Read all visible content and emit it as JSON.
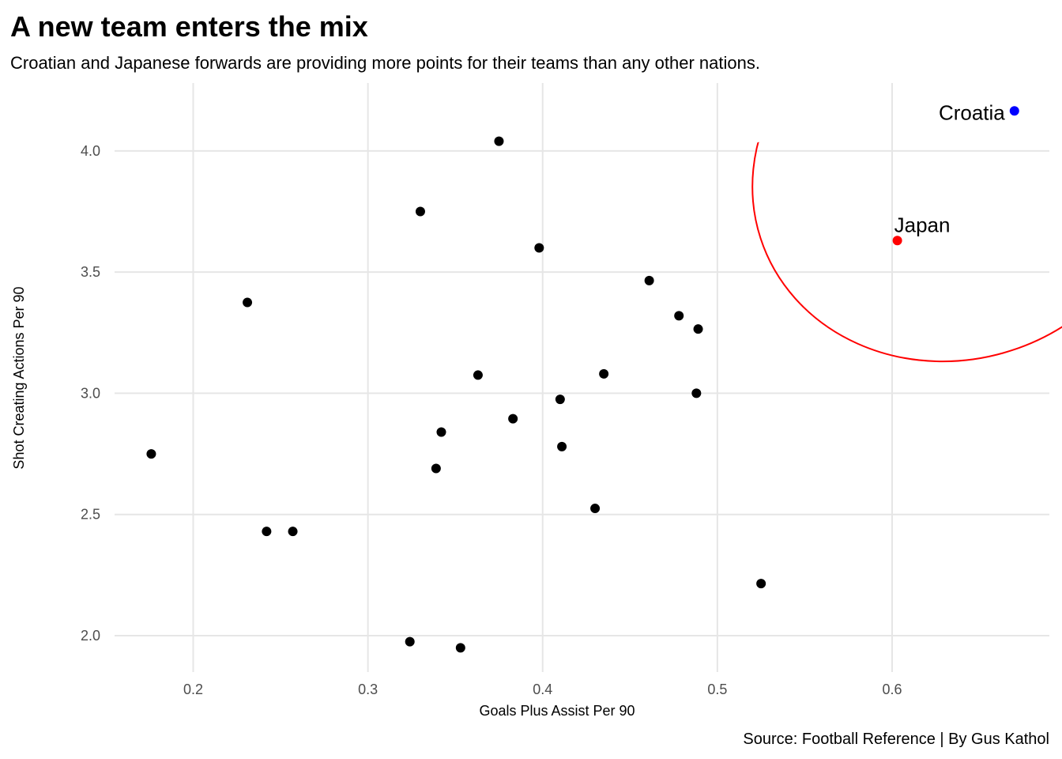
{
  "chart_data": {
    "type": "scatter",
    "title": "A new team enters the mix",
    "subtitle": "Croatian and Japanese forwards are providing more points for their teams than any other nations.",
    "xlabel": "Goals Plus Assist Per 90",
    "ylabel": "Shot Creating Actions Per 90",
    "caption": "Source: Football Reference | By Gus Kathol",
    "xlim": [
      0.155,
      0.69
    ],
    "ylim": [
      1.85,
      4.28
    ],
    "xticks": [
      "0.2",
      "0.3",
      "0.4",
      "0.5",
      "0.6"
    ],
    "xtick_values": [
      0.2,
      0.3,
      0.4,
      0.5,
      0.6
    ],
    "yticks": [
      "2.0",
      "2.5",
      "3.0",
      "3.5",
      "4.0"
    ],
    "ytick_values": [
      2.0,
      2.5,
      3.0,
      3.5,
      4.0
    ],
    "grid": true,
    "legend": "none",
    "colors": {
      "default": "#000000",
      "Croatia": "#0000ff",
      "Japan": "#ff0000",
      "ellipse": "#ff0000"
    },
    "points": [
      {
        "x": 0.176,
        "y": 2.75
      },
      {
        "x": 0.231,
        "y": 3.375
      },
      {
        "x": 0.242,
        "y": 2.43
      },
      {
        "x": 0.257,
        "y": 2.43
      },
      {
        "x": 0.324,
        "y": 1.975
      },
      {
        "x": 0.33,
        "y": 3.75
      },
      {
        "x": 0.339,
        "y": 2.69
      },
      {
        "x": 0.342,
        "y": 2.84
      },
      {
        "x": 0.353,
        "y": 1.95
      },
      {
        "x": 0.363,
        "y": 3.075
      },
      {
        "x": 0.375,
        "y": 4.04
      },
      {
        "x": 0.383,
        "y": 2.895
      },
      {
        "x": 0.398,
        "y": 3.6
      },
      {
        "x": 0.41,
        "y": 2.975
      },
      {
        "x": 0.411,
        "y": 2.78
      },
      {
        "x": 0.43,
        "y": 2.525
      },
      {
        "x": 0.435,
        "y": 3.08
      },
      {
        "x": 0.461,
        "y": 3.465
      },
      {
        "x": 0.478,
        "y": 3.32
      },
      {
        "x": 0.488,
        "y": 3.0
      },
      {
        "x": 0.489,
        "y": 3.265
      },
      {
        "x": 0.525,
        "y": 2.215
      }
    ],
    "highlighted": [
      {
        "label": "Croatia",
        "x": 0.67,
        "y": 4.165
      },
      {
        "label": "Japan",
        "x": 0.603,
        "y": 3.63
      }
    ],
    "ellipse": {
      "cx": 0.636,
      "cy": 3.9,
      "rx": 0.117,
      "ry": 0.76,
      "angle_deg": -18
    }
  }
}
